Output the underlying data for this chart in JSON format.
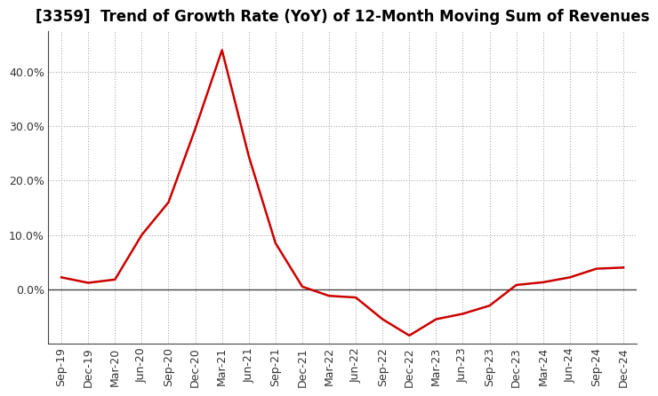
{
  "title": "[3359]  Trend of Growth Rate (YoY) of 12-Month Moving Sum of Revenues",
  "x_labels": [
    "Sep-19",
    "Dec-19",
    "Mar-20",
    "Jun-20",
    "Sep-20",
    "Dec-20",
    "Mar-21",
    "Jun-21",
    "Sep-21",
    "Dec-21",
    "Mar-22",
    "Jun-22",
    "Sep-22",
    "Dec-22",
    "Mar-23",
    "Jun-23",
    "Sep-23",
    "Dec-23",
    "Mar-24",
    "Jun-24",
    "Sep-24",
    "Dec-24"
  ],
  "y_values": [
    0.022,
    0.012,
    0.018,
    0.1,
    0.16,
    0.295,
    0.44,
    0.245,
    0.085,
    0.005,
    -0.012,
    -0.015,
    -0.055,
    -0.085,
    -0.055,
    -0.045,
    -0.03,
    0.008,
    0.013,
    0.022,
    0.038,
    0.04
  ],
  "line_color": "#cc0000",
  "line_width": 1.8,
  "ylim": [
    -0.1,
    0.475
  ],
  "yticks": [
    0.0,
    0.1,
    0.2,
    0.3,
    0.4
  ],
  "ytick_labels": [
    "0.0%",
    "10.0%",
    "20.0%",
    "30.0%",
    "40.0%"
  ],
  "background_color": "#ffffff",
  "plot_bg_color": "#ffffff",
  "grid_color": "#999999",
  "title_fontsize": 12,
  "tick_fontsize": 9,
  "zero_line_color": "#444444",
  "spine_color": "#444444"
}
